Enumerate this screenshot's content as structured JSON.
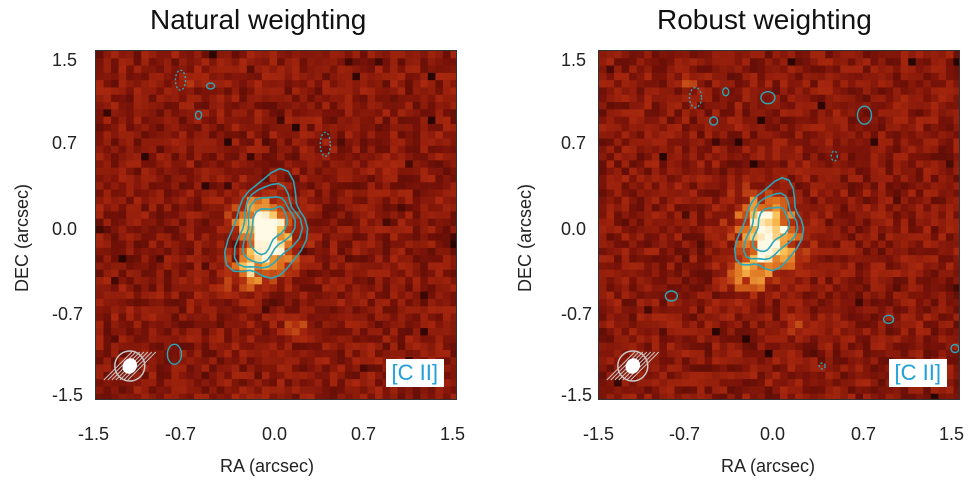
{
  "chart_data": [
    {
      "type": "heatmap",
      "title": "Natural weighting",
      "xlabel": "RA (arcsec)",
      "ylabel": "DEC (arcsec)",
      "xlim": [
        -1.5,
        1.5
      ],
      "ylim": [
        -1.5,
        1.5
      ],
      "x_ticks": [
        "-1.5",
        "-0.7",
        "0.0",
        "0.7",
        "1.5"
      ],
      "y_ticks": [
        "1.5",
        "0.7",
        "0.0",
        "-0.7",
        "-1.5"
      ],
      "overlay": "contours",
      "line_label": "[C II]",
      "colors": {
        "background": "#7a1408",
        "bright": "#ffd27a",
        "contour": "#2aa7b8",
        "label": "#1fa0d8"
      }
    },
    {
      "type": "heatmap",
      "title": "Robust weighting",
      "xlabel": "RA (arcsec)",
      "ylabel": "DEC (arcsec)",
      "xlim": [
        -1.5,
        1.5
      ],
      "ylim": [
        -1.5,
        1.5
      ],
      "x_ticks": [
        "-1.5",
        "-0.7",
        "0.0",
        "0.7",
        "1.5"
      ],
      "y_ticks": [
        "1.5",
        "0.7",
        "0.0",
        "-0.7",
        "-1.5"
      ],
      "overlay": "contours",
      "line_label": "[C II]",
      "colors": {
        "background": "#7a1408",
        "bright": "#ffd27a",
        "contour": "#2aa7b8",
        "label": "#1fa0d8"
      }
    }
  ]
}
